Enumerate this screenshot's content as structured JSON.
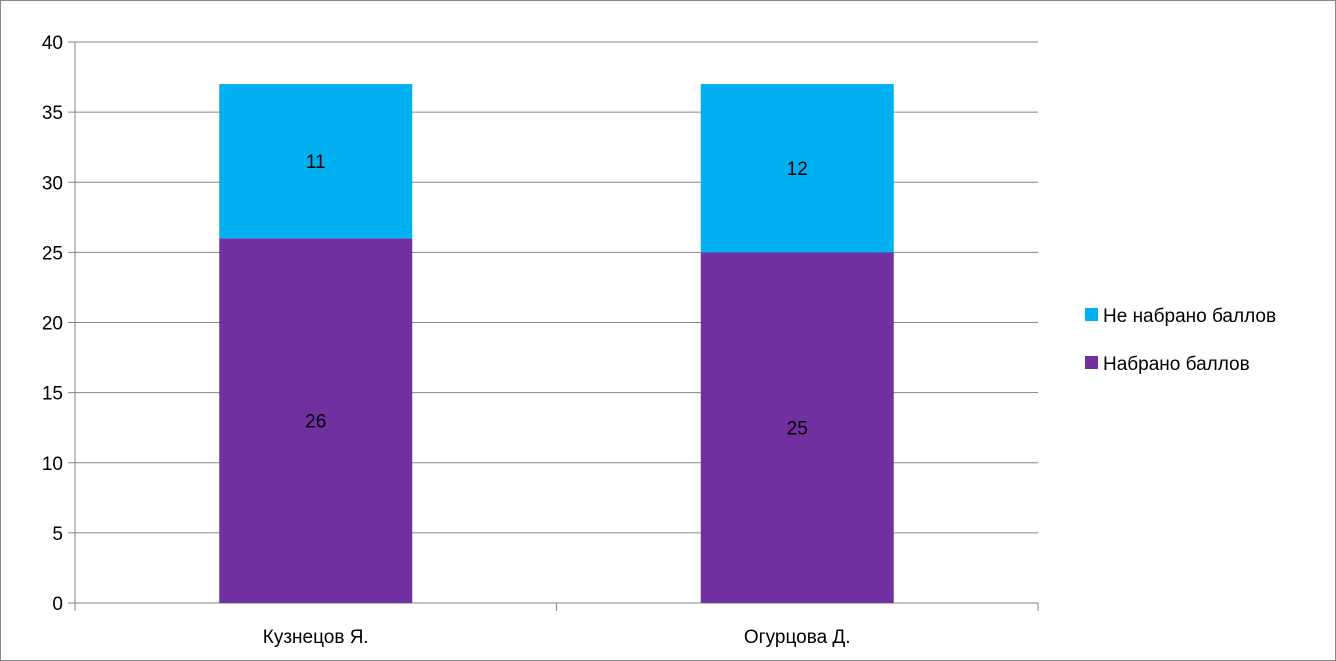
{
  "chart_data": {
    "type": "bar",
    "stacked": true,
    "categories": [
      "Кузнецов Я.",
      "Огурцова Д."
    ],
    "series": [
      {
        "name": "Набрано баллов",
        "values": [
          26,
          25
        ],
        "color": "#7030A0"
      },
      {
        "name": "Не набрано баллов",
        "values": [
          11,
          12
        ],
        "color": "#00B0F0"
      }
    ],
    "ylim": [
      0,
      40
    ],
    "yticks": [
      0,
      5,
      10,
      15,
      20,
      25,
      30,
      35,
      40
    ],
    "grid": true,
    "legend_position": "right",
    "legend_order": [
      "Не набрано баллов",
      "Набрано баллов"
    ],
    "title": "",
    "xlabel": "",
    "ylabel": ""
  }
}
